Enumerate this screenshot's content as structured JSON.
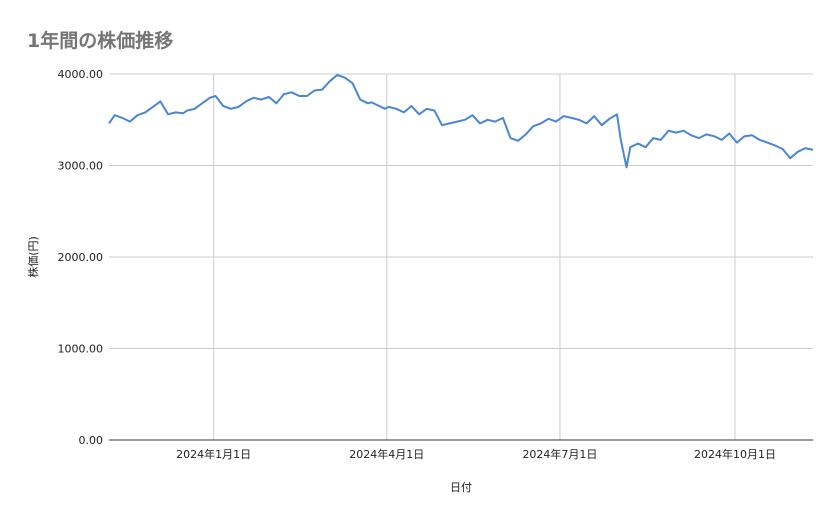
{
  "chart_data": {
    "type": "line",
    "title": "1年間の株価推移",
    "xlabel": "日付",
    "ylabel": "株価(円)",
    "ylim": [
      0,
      4000
    ],
    "yticks": [
      "0.00",
      "1000.00",
      "2000.00",
      "3000.00",
      "4000.00"
    ],
    "xticks": [
      "2024年1月1日",
      "2024年4月1日",
      "2024年7月1日",
      "2024年10月1日"
    ],
    "xtick_dates": [
      "2024-01-01",
      "2024-04-01",
      "2024-07-01",
      "2024-10-01"
    ],
    "xrange": [
      "2023-11-07",
      "2024-11-11"
    ],
    "grid": true,
    "series": [
      {
        "color": "#4a86d6",
        "x": [
          "2023-11-07",
          "2023-11-10",
          "2023-11-14",
          "2023-11-18",
          "2023-11-22",
          "2023-11-26",
          "2023-11-30",
          "2023-12-04",
          "2023-12-08",
          "2023-12-12",
          "2023-12-16",
          "2023-12-18",
          "2023-12-22",
          "2023-12-26",
          "2023-12-30",
          "2024-01-02",
          "2024-01-06",
          "2024-01-10",
          "2024-01-14",
          "2024-01-18",
          "2024-01-22",
          "2024-01-26",
          "2024-01-30",
          "2024-02-03",
          "2024-02-07",
          "2024-02-11",
          "2024-02-15",
          "2024-02-19",
          "2024-02-23",
          "2024-02-27",
          "2024-03-02",
          "2024-03-06",
          "2024-03-10",
          "2024-03-14",
          "2024-03-18",
          "2024-03-22",
          "2024-03-24",
          "2024-03-28",
          "2024-03-31",
          "2024-04-02",
          "2024-04-06",
          "2024-04-10",
          "2024-04-14",
          "2024-04-18",
          "2024-04-22",
          "2024-04-26",
          "2024-04-30",
          "2024-05-04",
          "2024-05-08",
          "2024-05-12",
          "2024-05-16",
          "2024-05-20",
          "2024-05-24",
          "2024-05-28",
          "2024-06-01",
          "2024-06-05",
          "2024-06-09",
          "2024-06-13",
          "2024-06-17",
          "2024-06-21",
          "2024-06-25",
          "2024-06-29",
          "2024-07-03",
          "2024-07-07",
          "2024-07-11",
          "2024-07-15",
          "2024-07-19",
          "2024-07-23",
          "2024-07-27",
          "2024-07-31",
          "2024-08-02",
          "2024-08-05",
          "2024-08-07",
          "2024-08-11",
          "2024-08-15",
          "2024-08-19",
          "2024-08-23",
          "2024-08-27",
          "2024-08-31",
          "2024-09-04",
          "2024-09-08",
          "2024-09-12",
          "2024-09-16",
          "2024-09-20",
          "2024-09-24",
          "2024-09-28",
          "2024-10-02",
          "2024-10-06",
          "2024-10-10",
          "2024-10-14",
          "2024-10-18",
          "2024-10-22",
          "2024-10-26",
          "2024-10-30",
          "2024-11-03",
          "2024-11-07",
          "2024-11-11"
        ],
        "y": [
          3460,
          3550,
          3520,
          3480,
          3550,
          3580,
          3640,
          3700,
          3560,
          3580,
          3570,
          3600,
          3620,
          3680,
          3740,
          3760,
          3650,
          3620,
          3640,
          3700,
          3740,
          3720,
          3750,
          3680,
          3780,
          3800,
          3760,
          3760,
          3820,
          3830,
          3920,
          3990,
          3960,
          3900,
          3720,
          3680,
          3690,
          3650,
          3620,
          3640,
          3620,
          3580,
          3650,
          3560,
          3620,
          3600,
          3440,
          3460,
          3480,
          3500,
          3550,
          3460,
          3500,
          3480,
          3520,
          3300,
          3270,
          3340,
          3430,
          3460,
          3510,
          3480,
          3540,
          3520,
          3500,
          3460,
          3540,
          3440,
          3510,
          3560,
          3280,
          2980,
          3200,
          3240,
          3200,
          3300,
          3280,
          3380,
          3360,
          3380,
          3330,
          3300,
          3340,
          3320,
          3280,
          3350,
          3250,
          3320,
          3330,
          3280,
          3250,
          3220,
          3180,
          3080,
          3150,
          3190,
          3170
        ]
      }
    ]
  }
}
